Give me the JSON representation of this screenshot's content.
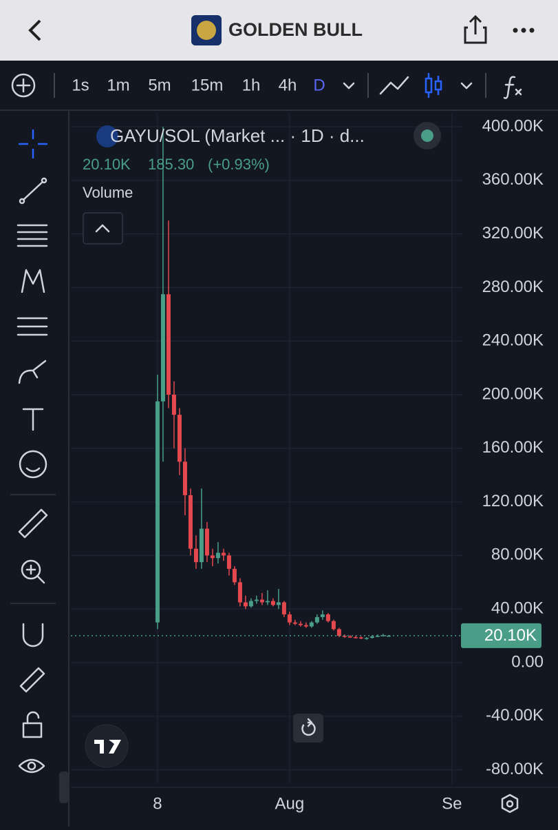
{
  "header": {
    "title": "GOLDEN BULL"
  },
  "toolbar": {
    "intervals": [
      "1s",
      "1m",
      "5m",
      "15m",
      "1h",
      "4h",
      "D"
    ],
    "active_interval": 6
  },
  "legend": {
    "symbol": "GAYU/SOL (Market ... · 1D · d...",
    "price": "20.10K",
    "change": "185.30",
    "change_pct": "(+0.93%)",
    "study": "Volume"
  },
  "chart_data": {
    "type": "candlestick",
    "x": [
      0,
      1,
      2,
      3,
      4,
      5,
      6,
      7,
      8,
      9,
      10,
      11,
      12,
      13,
      14,
      15,
      16,
      17,
      18,
      19,
      20,
      21,
      22,
      23,
      24,
      25,
      26,
      27,
      28,
      29,
      30,
      31,
      32,
      33,
      34,
      35,
      36,
      37,
      38,
      39,
      40,
      41,
      42
    ],
    "open": [
      30000,
      195000,
      275000,
      200000,
      185000,
      150000,
      125000,
      85000,
      75000,
      100000,
      80000,
      78000,
      82000,
      80000,
      70000,
      60000,
      45000,
      42000,
      46000,
      47000,
      45000,
      46000,
      43000,
      45000,
      36000,
      30000,
      29000,
      28000,
      27000,
      30000,
      34000,
      36000,
      31000,
      25000,
      20000,
      19500,
      19000,
      18800,
      18000,
      18500,
      19500,
      20000,
      19915
    ],
    "high": [
      215000,
      400000,
      330000,
      210000,
      190000,
      160000,
      130000,
      95000,
      130000,
      105000,
      85000,
      90000,
      85000,
      82000,
      72000,
      63000,
      50000,
      48000,
      50000,
      52000,
      54000,
      48000,
      55000,
      46000,
      38000,
      32000,
      31000,
      30000,
      31000,
      36000,
      39000,
      37000,
      32000,
      26000,
      21000,
      20500,
      20000,
      19500,
      19000,
      20500,
      21000,
      21500,
      20600
    ],
    "low": [
      25000,
      150000,
      190000,
      160000,
      140000,
      110000,
      80000,
      70000,
      70000,
      75000,
      72000,
      74000,
      76000,
      65000,
      58000,
      42000,
      40000,
      41000,
      44000,
      43000,
      43000,
      42000,
      40000,
      34000,
      28000,
      28000,
      27000,
      26000,
      26000,
      29000,
      32000,
      30000,
      24000,
      19000,
      18500,
      18500,
      18000,
      17500,
      17000,
      18000,
      19000,
      19500,
      19500
    ],
    "close": [
      195000,
      275000,
      200000,
      185000,
      150000,
      125000,
      85000,
      75000,
      100000,
      80000,
      78000,
      82000,
      80000,
      70000,
      60000,
      45000,
      42000,
      46000,
      47000,
      45000,
      46000,
      43000,
      45000,
      36000,
      30000,
      29000,
      28000,
      27000,
      30000,
      34000,
      36000,
      31000,
      25000,
      20000,
      19500,
      19000,
      18800,
      18000,
      18500,
      19500,
      20000,
      20500,
      20100
    ],
    "up_color": "#4a9d87",
    "down_color": "#e5484d",
    "last_price": 20100,
    "last_price_label": "20.10K",
    "xlim": [
      -15.75,
      55.4
    ],
    "xticks": [
      {
        "value": 0,
        "label": "8"
      },
      {
        "value": 24,
        "label": "Aug"
      },
      {
        "value": 53.5,
        "label": "Se"
      }
    ],
    "ylim": [
      -90500,
      409800
    ],
    "yticks": [
      {
        "value": 400000,
        "label": "400.00K"
      },
      {
        "value": 360000,
        "label": "360.00K"
      },
      {
        "value": 320000,
        "label": "320.00K"
      },
      {
        "value": 280000,
        "label": "280.00K"
      },
      {
        "value": 240000,
        "label": "240.00K"
      },
      {
        "value": 200000,
        "label": "200.00K"
      },
      {
        "value": 160000,
        "label": "160.00K"
      },
      {
        "value": 120000,
        "label": "120.00K"
      },
      {
        "value": 80000,
        "label": "80.00K"
      },
      {
        "value": 40000,
        "label": "40.00K"
      },
      {
        "value": 0,
        "label": "0.00"
      },
      {
        "value": -40000,
        "label": "-40.00K"
      },
      {
        "value": -80000,
        "label": "-80.00K"
      }
    ],
    "grid": true
  }
}
